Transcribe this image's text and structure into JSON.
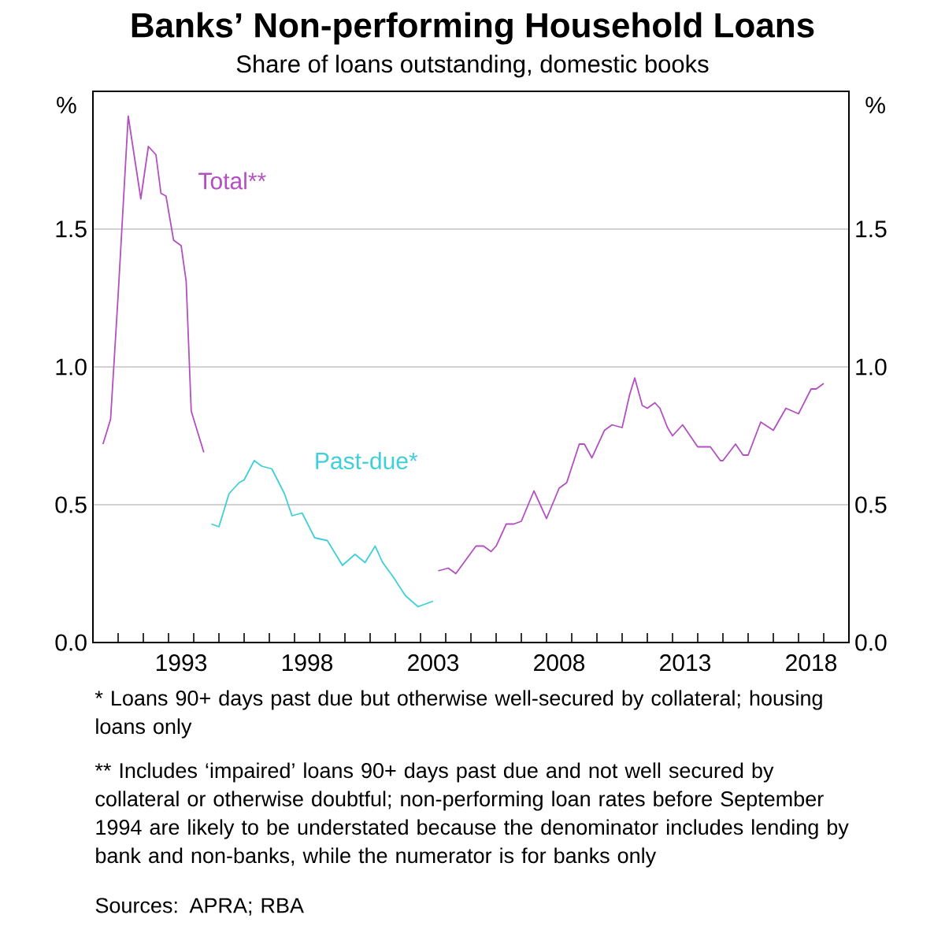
{
  "chart_data": {
    "type": "line",
    "title": "Banks’ Non-performing Household Loans",
    "subtitle": "Share of loans outstanding, domestic books",
    "ylabel": "%",
    "y2label": "%",
    "xlim": [
      1990,
      2020
    ],
    "xticks": [
      {
        "value": 1990,
        "label": null
      },
      {
        "value": 1991,
        "label": null
      },
      {
        "value": 1992,
        "label": null
      },
      {
        "value": 1993,
        "label": null
      },
      {
        "value": 1993.5,
        "label": "1993"
      },
      {
        "value": 1994,
        "label": null
      },
      {
        "value": 1995,
        "label": null
      },
      {
        "value": 1996,
        "label": null
      },
      {
        "value": 1997,
        "label": null
      },
      {
        "value": 1998,
        "label": null
      },
      {
        "value": 1998.5,
        "label": "1998"
      },
      {
        "value": 1999,
        "label": null
      },
      {
        "value": 2000,
        "label": null
      },
      {
        "value": 2001,
        "label": null
      },
      {
        "value": 2002,
        "label": null
      },
      {
        "value": 2003,
        "label": null
      },
      {
        "value": 2003.5,
        "label": "2003"
      },
      {
        "value": 2004,
        "label": null
      },
      {
        "value": 2005,
        "label": null
      },
      {
        "value": 2006,
        "label": null
      },
      {
        "value": 2007,
        "label": null
      },
      {
        "value": 2008,
        "label": null
      },
      {
        "value": 2008.5,
        "label": "2008"
      },
      {
        "value": 2009,
        "label": null
      },
      {
        "value": 2010,
        "label": null
      },
      {
        "value": 2011,
        "label": null
      },
      {
        "value": 2012,
        "label": null
      },
      {
        "value": 2013,
        "label": null
      },
      {
        "value": 2013.5,
        "label": "2013"
      },
      {
        "value": 2014,
        "label": null
      },
      {
        "value": 2015,
        "label": null
      },
      {
        "value": 2016,
        "label": null
      },
      {
        "value": 2017,
        "label": null
      },
      {
        "value": 2018,
        "label": null
      },
      {
        "value": 2018.5,
        "label": "2018"
      },
      {
        "value": 2019,
        "label": null
      },
      {
        "value": 2020,
        "label": null
      }
    ],
    "ylim": [
      0,
      2
    ],
    "yticks": [
      {
        "value": 0,
        "label": "0.0"
      },
      {
        "value": 0.5,
        "label": "0.5"
      },
      {
        "value": 1,
        "label": "1.0"
      },
      {
        "value": 1.5,
        "label": "1.5"
      }
    ],
    "y2lim": [
      0,
      2
    ],
    "y2ticks": [
      {
        "value": 0,
        "label": "0.0"
      },
      {
        "value": 0.5,
        "label": "0.5"
      },
      {
        "value": 1,
        "label": "1.0"
      },
      {
        "value": 1.5,
        "label": "1.5"
      }
    ],
    "grid": "y",
    "legend": false,
    "series": [
      {
        "name": "Total**",
        "color": "#b34fc0",
        "x": [
          1990.4,
          1990.7,
          1991.0,
          1991.4,
          1991.9,
          1992.2,
          1992.5,
          1992.7,
          1992.9,
          1993.2,
          1993.5,
          1993.7,
          1993.9,
          1994.4,
          1999.0,
          2003.7,
          2004.1,
          2004.4,
          2004.8,
          2005.2,
          2005.5,
          2005.8,
          2006.0,
          2006.4,
          2006.7,
          2007.0,
          2007.5,
          2008.0,
          2008.5,
          2008.8,
          2009.3,
          2009.5,
          2009.8,
          2010.3,
          2010.6,
          2011.0,
          2011.3,
          2011.5,
          2011.8,
          2012.0,
          2012.3,
          2012.5,
          2012.8,
          2013.0,
          2013.4,
          2014.0,
          2014.5,
          2014.9,
          2015.0,
          2015.5,
          2015.8,
          2016.0,
          2016.5,
          2017.0,
          2017.5,
          2018.0,
          2018.5,
          2018.7,
          2019.0
        ],
        "values": [
          0.72,
          0.81,
          1.26,
          1.91,
          1.61,
          1.8,
          1.77,
          1.63,
          1.62,
          1.46,
          1.44,
          1.31,
          0.84,
          0.69,
          null,
          0.26,
          0.27,
          0.25,
          0.3,
          0.35,
          0.35,
          0.33,
          0.35,
          0.43,
          0.43,
          0.44,
          0.55,
          0.45,
          0.56,
          0.58,
          0.72,
          0.72,
          0.67,
          0.77,
          0.79,
          0.78,
          0.9,
          0.96,
          0.86,
          0.85,
          0.87,
          0.85,
          0.78,
          0.75,
          0.79,
          0.71,
          0.71,
          0.66,
          0.66,
          0.72,
          0.68,
          0.68,
          0.8,
          0.77,
          0.85,
          0.83,
          0.92,
          0.92,
          0.94
        ]
      },
      {
        "name": "Past-due*",
        "color": "#3fcfd9",
        "x": [
          1994.7,
          1995.0,
          1995.4,
          1995.8,
          1996.0,
          1996.4,
          1996.7,
          1997.1,
          1997.6,
          1997.9,
          1998.3,
          1998.8,
          1999.3,
          1999.9,
          2000.4,
          2000.8,
          2001.2,
          2001.5,
          2001.9,
          2002.4,
          2002.9,
          2003.2,
          2003.5
        ],
        "values": [
          0.43,
          0.42,
          0.54,
          0.58,
          0.59,
          0.66,
          0.64,
          0.63,
          0.54,
          0.46,
          0.47,
          0.38,
          0.37,
          0.28,
          0.32,
          0.29,
          0.35,
          0.29,
          0.24,
          0.17,
          0.13,
          0.14,
          0.15
        ]
      }
    ],
    "annotations": [
      "*   Loans 90+ days past due but otherwise well-secured by collateral; housing loans only",
      "**   Includes ‘impaired’ loans 90+ days past due and not well secured by collateral or otherwise doubtful; non-performing loan rates before September 1994 are likely to be understated because the denominator includes lending by bank and non-banks, while the numerator is for banks only",
      "Sources:   APRA; RBA"
    ]
  }
}
